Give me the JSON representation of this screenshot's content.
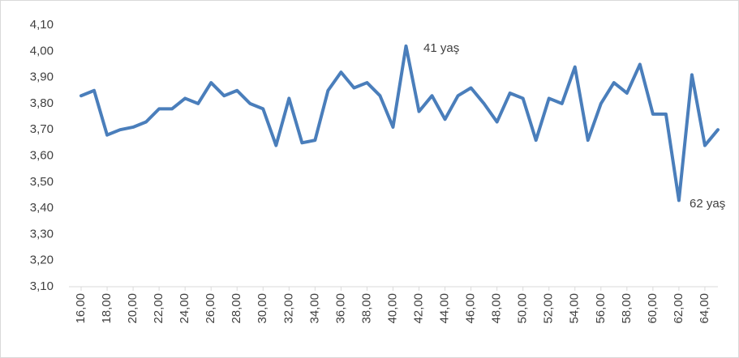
{
  "chart_data": {
    "type": "line",
    "x": [
      16,
      17,
      18,
      19,
      20,
      21,
      22,
      23,
      24,
      25,
      26,
      27,
      28,
      29,
      30,
      31,
      32,
      33,
      34,
      35,
      36,
      37,
      38,
      39,
      40,
      41,
      42,
      43,
      44,
      45,
      46,
      47,
      48,
      49,
      50,
      51,
      52,
      53,
      54,
      55,
      56,
      57,
      58,
      59,
      60,
      61,
      62,
      63,
      64,
      65
    ],
    "values": [
      3.83,
      3.85,
      3.68,
      3.7,
      3.71,
      3.73,
      3.78,
      3.78,
      3.82,
      3.8,
      3.88,
      3.83,
      3.85,
      3.8,
      3.78,
      3.64,
      3.82,
      3.65,
      3.66,
      3.85,
      3.92,
      3.86,
      3.88,
      3.83,
      3.71,
      4.02,
      3.77,
      3.83,
      3.74,
      3.83,
      3.86,
      3.8,
      3.73,
      3.84,
      3.82,
      3.66,
      3.82,
      3.8,
      3.94,
      3.66,
      3.8,
      3.88,
      3.84,
      3.95,
      3.76,
      3.76,
      3.43,
      3.91,
      3.64,
      3.7
    ],
    "color": "#4a7ebb",
    "ylim": [
      3.1,
      4.1
    ],
    "yticks": [
      {
        "value": 3.1,
        "label": "3,10"
      },
      {
        "value": 3.2,
        "label": "3,20"
      },
      {
        "value": 3.3,
        "label": "3,30"
      },
      {
        "value": 3.4,
        "label": "3,40"
      },
      {
        "value": 3.5,
        "label": "3,50"
      },
      {
        "value": 3.6,
        "label": "3,60"
      },
      {
        "value": 3.7,
        "label": "3,70"
      },
      {
        "value": 3.8,
        "label": "3,80"
      },
      {
        "value": 3.9,
        "label": "3,90"
      },
      {
        "value": 4.0,
        "label": "4,00"
      },
      {
        "value": 4.1,
        "label": "4,10"
      }
    ],
    "xlim": [
      16,
      65
    ],
    "xticks": [
      {
        "value": 16,
        "label": "16,00"
      },
      {
        "value": 18,
        "label": "18,00"
      },
      {
        "value": 20,
        "label": "20,00"
      },
      {
        "value": 22,
        "label": "22,00"
      },
      {
        "value": 24,
        "label": "24,00"
      },
      {
        "value": 26,
        "label": "26,00"
      },
      {
        "value": 28,
        "label": "28,00"
      },
      {
        "value": 30,
        "label": "30,00"
      },
      {
        "value": 32,
        "label": "32,00"
      },
      {
        "value": 34,
        "label": "34,00"
      },
      {
        "value": 36,
        "label": "36,00"
      },
      {
        "value": 38,
        "label": "38,00"
      },
      {
        "value": 40,
        "label": "40,00"
      },
      {
        "value": 42,
        "label": "42,00"
      },
      {
        "value": 44,
        "label": "44,00"
      },
      {
        "value": 46,
        "label": "46,00"
      },
      {
        "value": 48,
        "label": "48,00"
      },
      {
        "value": 50,
        "label": "50,00"
      },
      {
        "value": 52,
        "label": "52,00"
      },
      {
        "value": 54,
        "label": "54,00"
      },
      {
        "value": 56,
        "label": "56,00"
      },
      {
        "value": 58,
        "label": "58,00"
      },
      {
        "value": 60,
        "label": "60,00"
      },
      {
        "value": 62,
        "label": "62,00"
      },
      {
        "value": 64,
        "label": "64,00"
      }
    ],
    "annotations": [
      "41 yaş",
      "62 yaş"
    ]
  }
}
